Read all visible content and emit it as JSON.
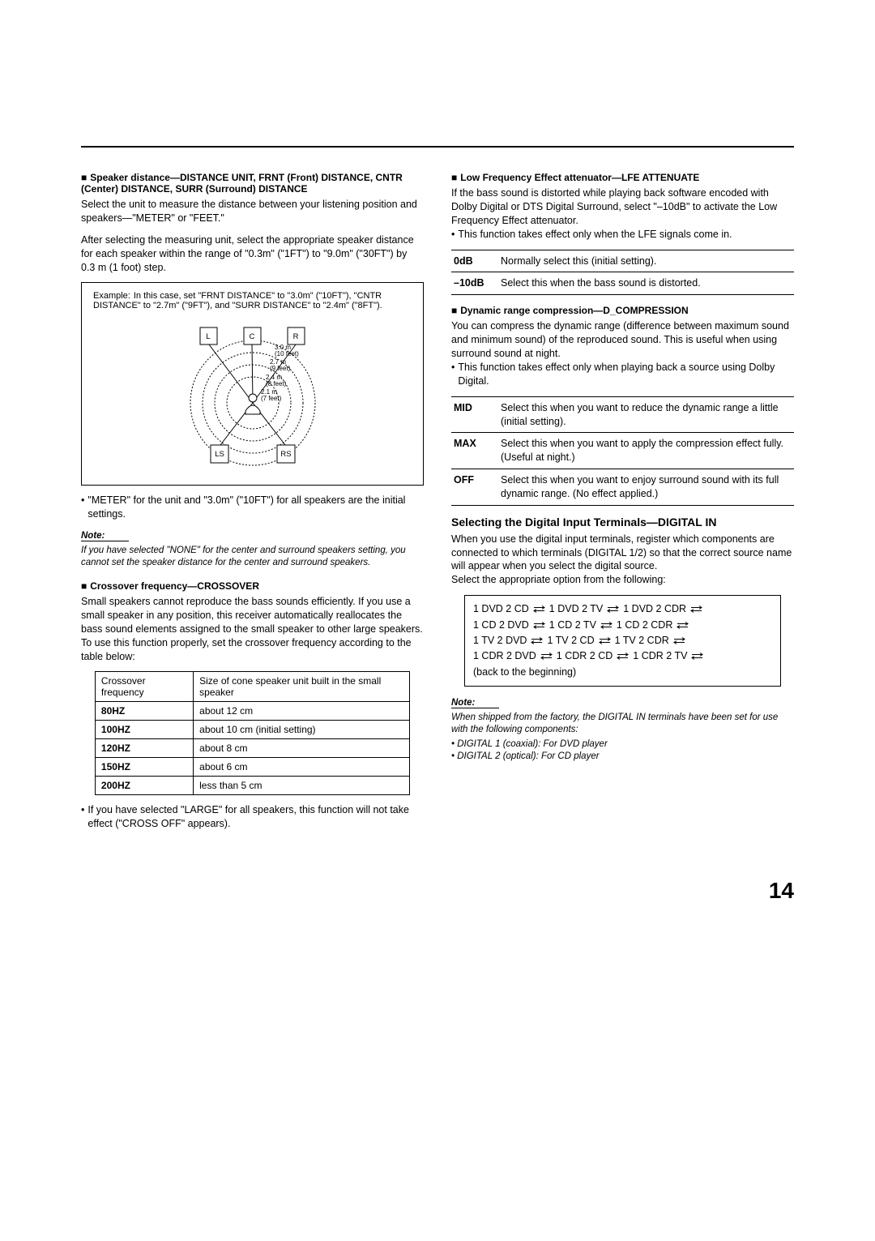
{
  "left": {
    "heading1": "Speaker distance—DISTANCE UNIT, FRNT (Front) DISTANCE, CNTR (Center) DISTANCE, SURR (Surround) DISTANCE",
    "p1": "Select the unit to measure the distance between your listening position and speakers—\"METER\" or \"FEET.\"",
    "p2": "After selecting the measuring unit, select the appropriate speaker distance for each speaker within the range of \"0.3m\" (\"1FT\") to \"9.0m\" (\"30FT\") by 0.3 m (1 foot) step.",
    "example_label": "Example:",
    "example_text": "In this case, set \"FRNT DISTANCE\" to \"3.0m\" (\"10FT\"), \"CNTR DISTANCE\" to \"2.7m\" (\"9FT\"), and \"SURR DISTANCE\" to \"2.4m\" (\"8FT\").",
    "diagram": {
      "L": "L",
      "C": "C",
      "R": "R",
      "LS": "LS",
      "RS": "RS",
      "d1": "3.0 m",
      "d1f": "(10 feet)",
      "d2": "2.7 m",
      "d2f": "(9 feet)",
      "d3": "2.4 m",
      "d3f": "(8 feet)",
      "d4": "2.1 m",
      "d4f": "(7 feet)"
    },
    "bullet1": "\"METER\" for the unit and \"3.0m\" (\"10FT\") for all speakers are the initial settings.",
    "note_head": "Note:",
    "note_body": "If you have selected \"NONE\" for the center and surround speakers setting, you cannot set the speaker distance for the center and surround speakers.",
    "heading2": "Crossover frequency—CROSSOVER",
    "p3": "Small speakers cannot reproduce the bass sounds efficiently. If you use a small speaker in any position, this receiver automatically reallocates the bass sound elements assigned to the small speaker to other large speakers.",
    "p4": "To use this function properly, set the crossover frequency according to the table below:",
    "crossover_table": {
      "h1": "Crossover frequency",
      "h2": "Size of cone speaker unit built in the small speaker",
      "rows": [
        {
          "k": "80HZ",
          "v": "about 12 cm"
        },
        {
          "k": "100HZ",
          "v": "about 10 cm (initial setting)"
        },
        {
          "k": "120HZ",
          "v": "about 8 cm"
        },
        {
          "k": "150HZ",
          "v": "about 6 cm"
        },
        {
          "k": "200HZ",
          "v": "less than 5 cm"
        }
      ]
    },
    "bullet2": "If you have selected \"LARGE\" for all speakers, this function will not take effect (\"CROSS OFF\" appears)."
  },
  "right": {
    "heading1": "Low Frequency Effect attenuator—LFE ATTENUATE",
    "p1": "If the bass sound is distorted while playing back software encoded with Dolby Digital or DTS Digital Surround, select \"–10dB\" to activate the Low Frequency Effect attenuator.",
    "bullet1": "This function takes effect only when the LFE signals come in.",
    "lfe_table": [
      {
        "k": "0dB",
        "v": "Normally select this (initial setting)."
      },
      {
        "k": "–10dB",
        "v": "Select this when the bass sound is distorted."
      }
    ],
    "heading2": "Dynamic range compression—D_COMPRESSION",
    "p2": "You can compress the dynamic range (difference between maximum sound and minimum sound) of the reproduced sound. This is useful when using surround sound at night.",
    "bullet2": "This function takes effect only when playing back a source using Dolby Digital.",
    "comp_table": [
      {
        "k": "MID",
        "v": "Select this when you want to reduce the dynamic range a little (initial setting)."
      },
      {
        "k": "MAX",
        "v": "Select this when you want to apply the compression effect fully. (Useful at night.)"
      },
      {
        "k": "OFF",
        "v": "Select this when you want to enjoy surround sound with its full dynamic range. (No effect applied.)"
      }
    ],
    "subheading": "Selecting the Digital Input Terminals—DIGITAL IN",
    "p3": "When you use the digital input terminals, register which components are connected to which terminals (DIGITAL 1/2) so that the correct source name will appear when you select the digital source.",
    "p4": "Select the appropriate option from the following:",
    "digital_in": {
      "rows": [
        [
          "1 DVD 2 CD",
          "1 DVD 2 TV",
          "1 DVD 2 CDR"
        ],
        [
          "1 CD 2 DVD",
          "1 CD 2 TV",
          "1 CD 2 CDR"
        ],
        [
          "1 TV 2 DVD",
          "1 TV 2 CD",
          "1 TV 2 CDR"
        ],
        [
          "1 CDR 2 DVD",
          "1 CDR 2 CD",
          "1 CDR 2 TV"
        ]
      ],
      "back": "(back to the beginning)"
    },
    "note_head": "Note:",
    "note_body": "When shipped from the factory, the DIGITAL IN terminals have been set for use with the following components:",
    "note_items": [
      "DIGITAL 1 (coaxial): For DVD player",
      "DIGITAL 2 (optical): For CD player"
    ]
  },
  "page_number": "14"
}
